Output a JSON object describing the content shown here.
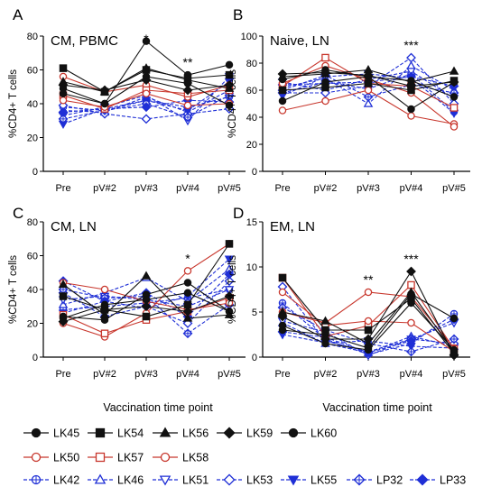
{
  "colors": {
    "black": "#111111",
    "red": "#c8372d",
    "blue": "#1f2fd6"
  },
  "common_x_label": "Vaccination time point",
  "legend": [
    {
      "name": "LK45",
      "group": "black",
      "marker": "circle"
    },
    {
      "name": "LK54",
      "group": "black",
      "marker": "square"
    },
    {
      "name": "LK56",
      "group": "black",
      "marker": "triangle-up"
    },
    {
      "name": "LK59",
      "group": "black",
      "marker": "diamond"
    },
    {
      "name": "LK60",
      "group": "black",
      "marker": "circle"
    },
    {
      "name": "LK50",
      "group": "red",
      "marker": "circle-open"
    },
    {
      "name": "LK57",
      "group": "red",
      "marker": "square-open"
    },
    {
      "name": "LK58",
      "group": "red",
      "marker": "circle-open"
    },
    {
      "name": "LK42",
      "group": "blue",
      "marker": "circle-cross"
    },
    {
      "name": "LK46",
      "group": "blue",
      "marker": "triangle-up-open"
    },
    {
      "name": "LK51",
      "group": "blue",
      "marker": "triangle-down-open"
    },
    {
      "name": "LK53",
      "group": "blue",
      "marker": "diamond-open"
    },
    {
      "name": "LK55",
      "group": "blue",
      "marker": "triangle-down"
    },
    {
      "name": "LP32",
      "group": "blue",
      "marker": "diamond-cross"
    },
    {
      "name": "LP33",
      "group": "blue",
      "marker": "diamond"
    }
  ],
  "chart_data": [
    {
      "type": "line",
      "letter": "A",
      "title": "CM, PBMC",
      "ylabel": "%CD4+ T cells",
      "ylim": [
        0,
        80
      ],
      "yticks": [
        0,
        20,
        40,
        60,
        80
      ],
      "categories": [
        "Pre",
        "pV#2",
        "pV#3",
        "pV#4",
        "pV#5"
      ],
      "significance": [
        {
          "at": "pV#3",
          "label": "*"
        },
        {
          "at": "pV#4",
          "label": "**"
        }
      ],
      "series": [
        {
          "name": "LK45",
          "values": [
            46,
            40,
            77,
            57,
            63
          ]
        },
        {
          "name": "LK54",
          "values": [
            61,
            47,
            60,
            55,
            57
          ]
        },
        {
          "name": "LK56",
          "values": [
            53,
            47,
            61,
            54,
            49
          ]
        },
        {
          "name": "LK59",
          "values": [
            51,
            48,
            54,
            48,
            51
          ]
        },
        {
          "name": "LK60",
          "values": [
            49,
            40,
            56,
            52,
            39
          ]
        },
        {
          "name": "LK50",
          "values": [
            56,
            47,
            51,
            44,
            51
          ]
        },
        {
          "name": "LK57",
          "values": [
            45,
            37,
            48,
            46,
            48
          ]
        },
        {
          "name": "LK58",
          "values": [
            42,
            38,
            46,
            39,
            40
          ]
        },
        {
          "name": "LK42",
          "values": [
            38,
            36,
            42,
            38,
            44
          ]
        },
        {
          "name": "LK46",
          "values": [
            36,
            35,
            44,
            35,
            48
          ]
        },
        {
          "name": "LK51",
          "values": [
            33,
            38,
            45,
            30,
            56
          ]
        },
        {
          "name": "LK53",
          "values": [
            39,
            34,
            31,
            34,
            37
          ]
        },
        {
          "name": "LK55",
          "values": [
            28,
            37,
            42,
            36,
            53
          ]
        },
        {
          "name": "LP32",
          "values": [
            31,
            36,
            40,
            32,
            45
          ]
        },
        {
          "name": "LP33",
          "values": [
            35,
            37,
            38,
            42,
            41
          ]
        }
      ]
    },
    {
      "type": "line",
      "letter": "B",
      "title": "Naive, LN",
      "ylabel": "%CD4+ T cells",
      "ylim": [
        0,
        100
      ],
      "yticks": [
        0,
        20,
        40,
        60,
        80,
        100
      ],
      "categories": [
        "Pre",
        "pV#2",
        "pV#3",
        "pV#4",
        "pV#5"
      ],
      "significance": [
        {
          "at": "pV#4",
          "label": "***"
        }
      ],
      "series": [
        {
          "name": "LK45",
          "values": [
            68,
            75,
            70,
            46,
            66
          ]
        },
        {
          "name": "LK54",
          "values": [
            60,
            62,
            65,
            60,
            67
          ]
        },
        {
          "name": "LK56",
          "values": [
            70,
            72,
            75,
            66,
            74
          ]
        },
        {
          "name": "LK59",
          "values": [
            72,
            73,
            71,
            63,
            66
          ]
        },
        {
          "name": "LK60",
          "values": [
            52,
            66,
            70,
            67,
            55
          ]
        },
        {
          "name": "LK50",
          "values": [
            45,
            52,
            60,
            41,
            35
          ]
        },
        {
          "name": "LK57",
          "values": [
            63,
            84,
            65,
            63,
            47
          ]
        },
        {
          "name": "LK58",
          "values": [
            65,
            78,
            68,
            58,
            33
          ]
        },
        {
          "name": "LK42",
          "values": [
            58,
            66,
            61,
            72,
            44
          ]
        },
        {
          "name": "LK46",
          "values": [
            62,
            69,
            50,
            78,
            60
          ]
        },
        {
          "name": "LK51",
          "values": [
            66,
            60,
            68,
            74,
            54
          ]
        },
        {
          "name": "LK53",
          "values": [
            58,
            58,
            63,
            84,
            50
          ]
        },
        {
          "name": "LK55",
          "values": [
            56,
            70,
            72,
            69,
            43
          ]
        },
        {
          "name": "LP32",
          "values": [
            60,
            71,
            55,
            64,
            58
          ]
        },
        {
          "name": "LP33",
          "values": [
            64,
            65,
            66,
            70,
            63
          ]
        }
      ]
    },
    {
      "type": "line",
      "letter": "C",
      "title": "CM, LN",
      "ylabel": "%CD4+ T cells",
      "ylim": [
        0,
        80
      ],
      "yticks": [
        0,
        20,
        40,
        60,
        80
      ],
      "categories": [
        "Pre",
        "pV#2",
        "pV#3",
        "pV#4",
        "pV#5"
      ],
      "significance": [
        {
          "at": "pV#4",
          "label": "*"
        }
      ],
      "series": [
        {
          "name": "LK45",
          "values": [
            24,
            22,
            37,
            44,
            27
          ]
        },
        {
          "name": "LK54",
          "values": [
            36,
            28,
            24,
            31,
            67
          ]
        },
        {
          "name": "LK56",
          "values": [
            43,
            25,
            48,
            23,
            25
          ]
        },
        {
          "name": "LK59",
          "values": [
            21,
            28,
            30,
            27,
            36
          ]
        },
        {
          "name": "LK60",
          "values": [
            23,
            31,
            34,
            38,
            27
          ]
        },
        {
          "name": "LK50",
          "values": [
            20,
            12,
            26,
            51,
            67
          ]
        },
        {
          "name": "LK57",
          "values": [
            25,
            14,
            22,
            27,
            35
          ]
        },
        {
          "name": "LK58",
          "values": [
            44,
            40,
            33,
            28,
            32
          ]
        },
        {
          "name": "LK42",
          "values": [
            28,
            30,
            32,
            35,
            40
          ]
        },
        {
          "name": "LK46",
          "values": [
            31,
            38,
            47,
            33,
            52
          ]
        },
        {
          "name": "LK51",
          "values": [
            34,
            36,
            34,
            30,
            40
          ]
        },
        {
          "name": "LK53",
          "values": [
            38,
            24,
            30,
            20,
            45
          ]
        },
        {
          "name": "LK55",
          "values": [
            26,
            33,
            29,
            36,
            58
          ]
        },
        {
          "name": "LP32",
          "values": [
            40,
            35,
            36,
            14,
            31
          ]
        },
        {
          "name": "LP33",
          "values": [
            45,
            33,
            38,
            24,
            49
          ]
        }
      ]
    },
    {
      "type": "line",
      "letter": "D",
      "title": "EM, LN",
      "ylabel": "%CD4+ T cells",
      "ylim": [
        0,
        15
      ],
      "yticks": [
        0,
        5,
        10,
        15
      ],
      "categories": [
        "Pre",
        "pV#2",
        "pV#3",
        "pV#4",
        "pV#5"
      ],
      "significance": [
        {
          "at": "pV#3",
          "label": "**"
        },
        {
          "at": "pV#4",
          "label": "***"
        }
      ],
      "series": [
        {
          "name": "LK45",
          "values": [
            3.0,
            2.5,
            1.0,
            7.0,
            4.3
          ]
        },
        {
          "name": "LK54",
          "values": [
            8.8,
            3.0,
            3.0,
            6.5,
            0.4
          ]
        },
        {
          "name": "LK56",
          "values": [
            5.0,
            4.0,
            1.5,
            7.2,
            0.6
          ]
        },
        {
          "name": "LK59",
          "values": [
            4.5,
            2.0,
            2.0,
            9.5,
            0.2
          ]
        },
        {
          "name": "LK60",
          "values": [
            3.5,
            1.5,
            0.8,
            6.0,
            0.8
          ]
        },
        {
          "name": "LK50",
          "values": [
            5.0,
            3.8,
            7.2,
            6.7,
            1.0
          ]
        },
        {
          "name": "LK57",
          "values": [
            8.8,
            2.3,
            3.5,
            8.0,
            0.9
          ]
        },
        {
          "name": "LK58",
          "values": [
            7.2,
            3.5,
            4.0,
            3.8,
            0.6
          ]
        },
        {
          "name": "LK42",
          "values": [
            6.0,
            2.0,
            0.3,
            1.5,
            4.8
          ]
        },
        {
          "name": "LK46",
          "values": [
            3.8,
            1.5,
            0.5,
            2.3,
            1.2
          ]
        },
        {
          "name": "LK51",
          "values": [
            4.0,
            2.8,
            0.2,
            2.0,
            3.8
          ]
        },
        {
          "name": "LK53",
          "values": [
            7.8,
            1.8,
            0.6,
            2.0,
            1.5
          ]
        },
        {
          "name": "LK55",
          "values": [
            2.5,
            1.6,
            1.8,
            1.2,
            1.0
          ]
        },
        {
          "name": "LP32",
          "values": [
            5.5,
            3.0,
            1.5,
            0.6,
            2.0
          ]
        },
        {
          "name": "LP33",
          "values": [
            2.8,
            2.2,
            0.5,
            1.8,
            4.2
          ]
        }
      ]
    }
  ]
}
